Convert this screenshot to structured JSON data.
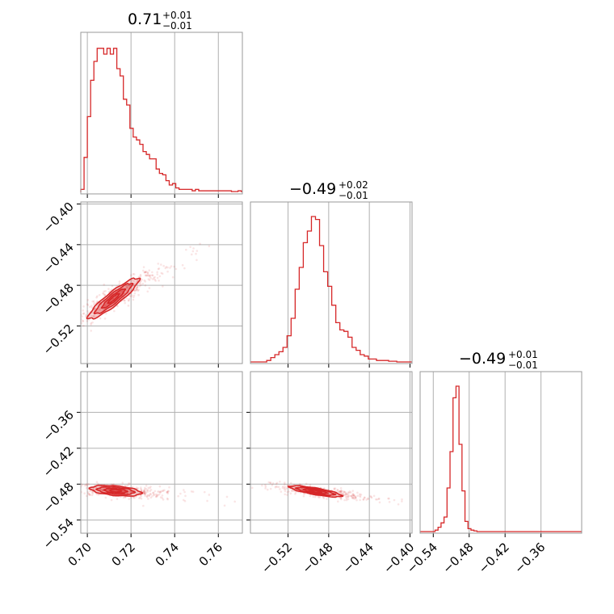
{
  "figure": {
    "accent_color": "#d62728",
    "titles": [
      {
        "main": "0.71",
        "sup": "+0.01",
        "sub": "−0.01"
      },
      {
        "main": "−0.49",
        "sup": "+0.02",
        "sub": "−0.01"
      },
      {
        "main": "−0.49",
        "sup": "+0.01",
        "sub": "−0.01"
      }
    ]
  },
  "chart_data": {
    "type": "corner",
    "color": "#d62728",
    "grid": true,
    "parameters": [
      {
        "index": 0,
        "median": 0.71,
        "plus": 0.01,
        "minus": 0.01,
        "range": [
          0.697,
          0.771
        ],
        "ticks": [
          0.7,
          0.72,
          0.74,
          0.76
        ],
        "tick_labels": [
          "0.70",
          "0.72",
          "0.74",
          "0.76"
        ]
      },
      {
        "index": 1,
        "median": -0.49,
        "plus": 0.02,
        "minus": 0.01,
        "range": [
          -0.557,
          -0.398
        ],
        "ticks": [
          -0.52,
          -0.48,
          -0.44,
          -0.4
        ],
        "tick_labels": [
          "−0.52",
          "−0.48",
          "−0.44",
          "−0.40"
        ]
      },
      {
        "index": 2,
        "median": -0.49,
        "plus": 0.01,
        "minus": 0.01,
        "range": [
          -0.562,
          -0.292
        ],
        "ticks": [
          -0.54,
          -0.48,
          -0.42,
          -0.36
        ],
        "tick_labels": [
          "−0.54",
          "−0.48",
          "−0.42",
          "−0.36"
        ]
      }
    ],
    "histograms": [
      {
        "param": 0,
        "bin_start": 0.697,
        "bin_width": 0.0015,
        "counts": [
          0.02,
          0.24,
          0.52,
          0.77,
          0.9,
          0.99,
          0.99,
          0.95,
          0.99,
          0.95,
          0.99,
          0.85,
          0.8,
          0.64,
          0.6,
          0.44,
          0.38,
          0.36,
          0.33,
          0.28,
          0.26,
          0.23,
          0.23,
          0.16,
          0.13,
          0.12,
          0.08,
          0.05,
          0.06,
          0.03,
          0.02,
          0.02,
          0.02,
          0.02,
          0.01,
          0.02,
          0.01,
          0.01,
          0.01,
          0.01,
          0.01,
          0.01,
          0.01,
          0.01,
          0.01,
          0.01,
          0.005,
          0.005,
          0.01,
          0.005
        ]
      },
      {
        "param": 1,
        "bin_start": -0.557,
        "bin_width": 0.004,
        "counts": [
          0,
          0,
          0,
          0,
          0.01,
          0.03,
          0.05,
          0.07,
          0.1,
          0.18,
          0.3,
          0.5,
          0.65,
          0.82,
          0.9,
          1.0,
          0.98,
          0.8,
          0.62,
          0.52,
          0.39,
          0.27,
          0.22,
          0.21,
          0.17,
          0.1,
          0.08,
          0.05,
          0.04,
          0.02,
          0.02,
          0.01,
          0.01,
          0.01,
          0.005,
          0.005,
          0,
          0,
          0,
          0
        ]
      },
      {
        "param": 2,
        "bin_start": -0.562,
        "bin_width": 0.005,
        "counts": [
          0,
          0,
          0,
          0,
          0,
          0.01,
          0.03,
          0.06,
          0.1,
          0.3,
          0.55,
          0.92,
          1.0,
          0.6,
          0.28,
          0.07,
          0.02,
          0.01,
          0.005,
          0,
          0,
          0,
          0,
          0,
          0,
          0,
          0,
          0,
          0,
          0,
          0,
          0,
          0,
          0,
          0,
          0,
          0,
          0,
          0,
          0,
          0,
          0,
          0,
          0,
          0,
          0,
          0,
          0,
          0,
          0,
          0,
          0,
          0,
          0
        ]
      }
    ],
    "pairs": [
      {
        "x_param": 0,
        "y_param": 1,
        "center": [
          0.712,
          -0.493
        ],
        "spread": [
          0.01,
          0.022
        ],
        "correlation": 0.9,
        "contour_levels": [
          0.39,
          0.86
        ],
        "scatter_extent": {
          "x": [
            0.698,
            0.77
          ],
          "y": [
            -0.556,
            -0.405
          ]
        }
      },
      {
        "x_param": 0,
        "y_param": 2,
        "center": [
          0.713,
          -0.491
        ],
        "spread": [
          0.01,
          0.01
        ],
        "correlation": -0.35,
        "contour_levels": [
          0.39,
          0.86
        ],
        "scatter_extent": {
          "x": [
            0.698,
            0.77
          ],
          "y": [
            -0.515,
            -0.47
          ]
        }
      },
      {
        "x_param": 1,
        "y_param": 2,
        "center": [
          -0.493,
          -0.492
        ],
        "spread": [
          0.022,
          0.01
        ],
        "correlation": -0.75,
        "contour_levels": [
          0.39,
          0.86
        ],
        "scatter_extent": {
          "x": [
            -0.54,
            -0.43
          ],
          "y": [
            -0.525,
            -0.465
          ]
        }
      }
    ]
  }
}
